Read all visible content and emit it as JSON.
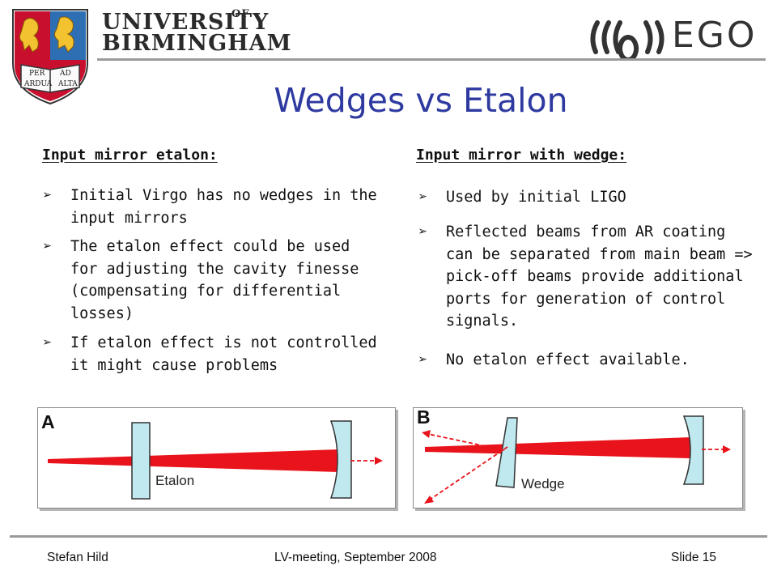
{
  "header": {
    "university_line1": "UNIVERSITY",
    "university_of": "OF",
    "university_line2": "BIRMINGHAM",
    "crest_text": [
      "PER",
      "AD",
      "ARDUA",
      "ALTA"
    ],
    "partner_logo": "EGO"
  },
  "title": "Wedges vs Etalon",
  "left_column": {
    "heading": "Input mirror etalon:",
    "bullets": [
      "Initial Virgo has no wedges in the input mirrors",
      "The etalon effect could be used for adjusting the cavity finesse (compensating for differential losses)",
      "If etalon effect is not controlled it might cause problems"
    ]
  },
  "right_column": {
    "heading": "Input mirror with wedge:",
    "bullets": [
      "Used by initial LIGO",
      "Reflected beams from AR coating can be separated from main beam => pick-off beams provide additional ports for generation of control signals.",
      "No etalon effect available."
    ]
  },
  "bullet_symbol": "➢",
  "diagram_a": {
    "letter": "A",
    "label": "Etalon"
  },
  "diagram_b": {
    "letter": "B",
    "label": "Wedge"
  },
  "colors": {
    "title": "#2e3aa0",
    "beam": "#e8131b",
    "optic_fill": "#bfe8ef",
    "crest_red": "#c8102e",
    "crest_blue": "#2e6fb4",
    "crest_gold": "#f2c230"
  },
  "footer": {
    "author": "Stefan Hild",
    "event": "LV-meeting, September 2008",
    "slide": "Slide 15"
  }
}
